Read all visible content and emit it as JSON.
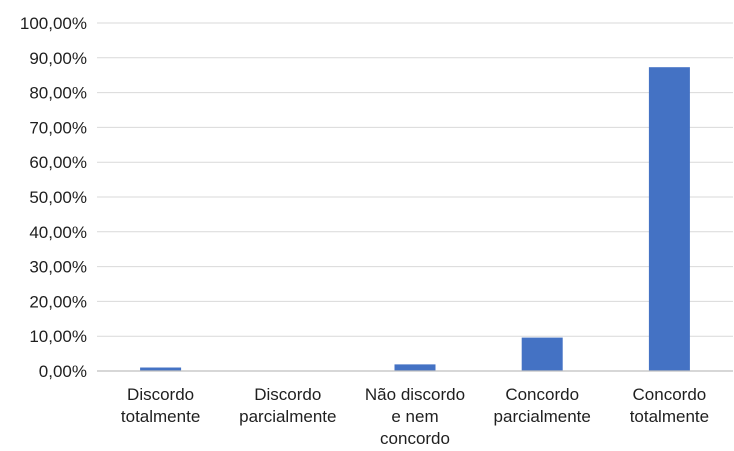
{
  "chart_data": {
    "type": "bar",
    "title": "",
    "xlabel": "",
    "ylabel": "",
    "categories": [
      [
        "Discordo",
        "totalmente"
      ],
      [
        "Discordo",
        "parcialmente"
      ],
      [
        "Não discordo",
        "e nem",
        "concordo"
      ],
      [
        "Concordo",
        "parcialmente"
      ],
      [
        "Concordo",
        "totalmente"
      ]
    ],
    "values": [
      1.0,
      0.0,
      1.9,
      9.6,
      87.3
    ],
    "ylim": [
      0,
      100
    ],
    "yticks": [
      0,
      10,
      20,
      30,
      40,
      50,
      60,
      70,
      80,
      90,
      100
    ],
    "ytick_labels": [
      "0,00%",
      "10,00%",
      "20,00%",
      "30,00%",
      "40,00%",
      "50,00%",
      "60,00%",
      "70,00%",
      "80,00%",
      "90,00%",
      "100,00%"
    ],
    "grid": true,
    "legend": "none",
    "colors": {
      "bar": "#4472C4",
      "grid": "#d9d9d9",
      "axis": "#bfbfbf",
      "text": "#1f1f1f"
    }
  }
}
